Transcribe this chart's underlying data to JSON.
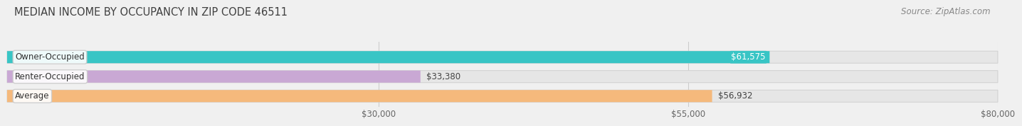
{
  "title": "MEDIAN INCOME BY OCCUPANCY IN ZIP CODE 46511",
  "source": "Source: ZipAtlas.com",
  "categories": [
    "Owner-Occupied",
    "Renter-Occupied",
    "Average"
  ],
  "values": [
    61575,
    33380,
    56932
  ],
  "bar_colors": [
    "#38c5c5",
    "#c9a8d4",
    "#f5b97c"
  ],
  "bar_labels": [
    "$61,575",
    "$33,380",
    "$56,932"
  ],
  "label_inside": [
    true,
    false,
    false
  ],
  "xmin": 0,
  "xmax": 80000,
  "xticks": [
    30000,
    55000,
    80000
  ],
  "xticklabels": [
    "$30,000",
    "$55,000",
    "$80,000"
  ],
  "bg_color": "#f0f0f0",
  "track_color": "#e6e6e6",
  "track_border_color": "#d0d0d0",
  "title_fontsize": 10.5,
  "source_fontsize": 8.5,
  "bar_label_fontsize": 8.5,
  "cat_label_fontsize": 8.5,
  "tick_fontsize": 8.5,
  "bar_height": 0.62,
  "bar_gap": 0.18
}
